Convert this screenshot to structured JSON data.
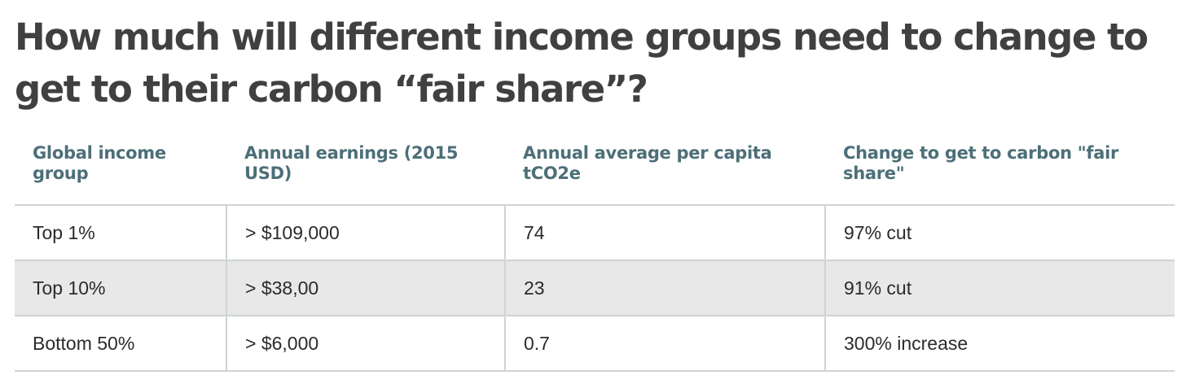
{
  "title": "How much will different income groups need to change to get to their carbon “fair share”?",
  "chart_data": {
    "type": "table",
    "columns": [
      "Global income group",
      "Annual earnings (2015 USD)",
      "Annual average per capita tCO2e",
      "Change to get to carbon \"fair share\""
    ],
    "rows": [
      [
        "Top 1%",
        "> $109,000",
        "74",
        "97% cut"
      ],
      [
        "Top 10%",
        "> $38,00",
        "23",
        "91% cut"
      ],
      [
        "Bottom 50%",
        "> $6,000",
        "0.7",
        "300% increase"
      ]
    ]
  },
  "colors": {
    "header_text": "#4c6f78",
    "title_text": "#404040",
    "shaded_row": "#e8e8e9",
    "grid_line": "#cfd4d6"
  }
}
